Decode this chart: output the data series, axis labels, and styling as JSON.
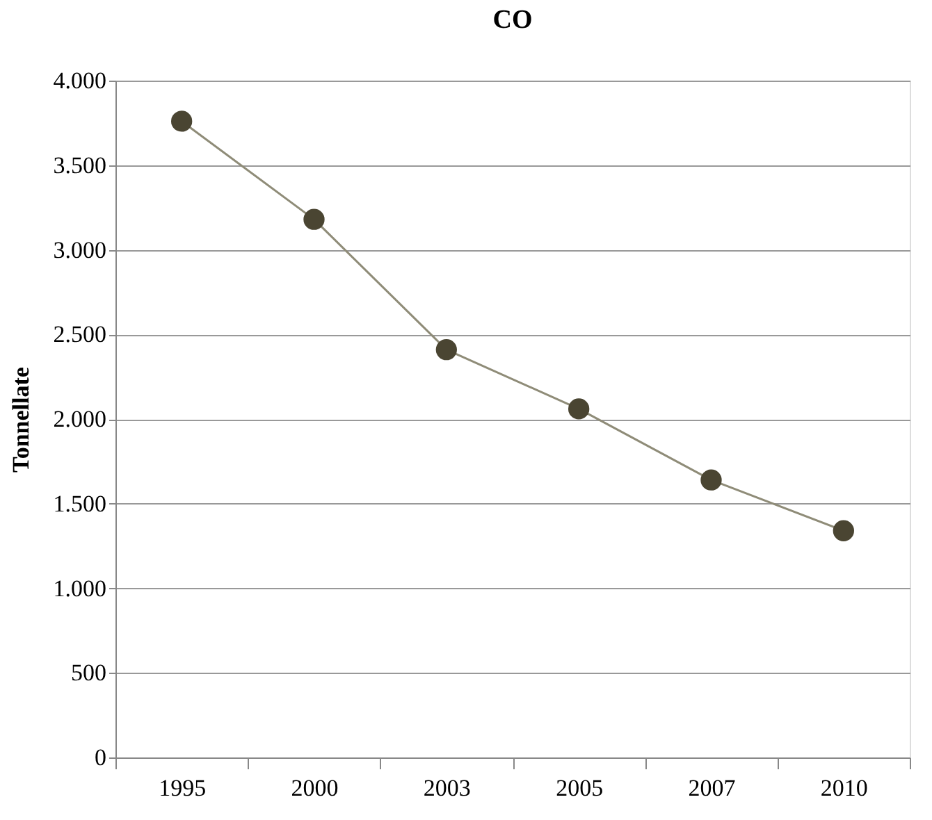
{
  "chart_data": {
    "type": "line",
    "title": "CO",
    "ylabel": "Tonnellate",
    "categories": [
      "1995",
      "2000",
      "2003",
      "2005",
      "2007",
      "2010"
    ],
    "series": [
      {
        "color": "#4a4532",
        "values": [
          3760,
          3180,
          2410,
          2060,
          1640,
          1340
        ]
      }
    ],
    "ylim": [
      0,
      4000
    ],
    "yticks": [
      {
        "value": 0,
        "label": "0"
      },
      {
        "value": 500,
        "label": "500"
      },
      {
        "value": 1000,
        "label": "1.000"
      },
      {
        "value": 1500,
        "label": "1.500"
      },
      {
        "value": 2000,
        "label": "2.000"
      },
      {
        "value": 2500,
        "label": "2.500"
      },
      {
        "value": 3000,
        "label": "3.000"
      },
      {
        "value": 3500,
        "label": "3.500"
      },
      {
        "value": 4000,
        "label": "4.000"
      }
    ],
    "grid": "y",
    "legend": false,
    "marker": "circle",
    "line_style": "solid"
  }
}
